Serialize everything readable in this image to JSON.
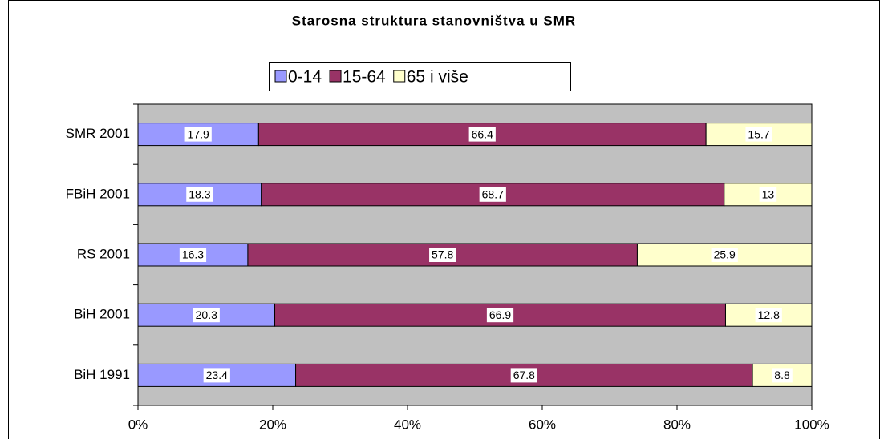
{
  "chart_data": {
    "type": "stacked-barh",
    "title": "Starosna struktura stanovništva u SMR",
    "categories": [
      "SMR 2001",
      "FBiH 2001",
      "RS 2001",
      "BiH 2001",
      "BiH 1991"
    ],
    "series": [
      {
        "name": "0-14",
        "color": "#9999ff",
        "values": [
          17.9,
          18.3,
          16.3,
          20.3,
          23.4
        ]
      },
      {
        "name": "15-64",
        "color": "#993366",
        "values": [
          66.4,
          68.7,
          57.8,
          66.9,
          67.8
        ]
      },
      {
        "name": "65 i više",
        "color": "#ffffcc",
        "values": [
          15.7,
          13,
          25.9,
          12.8,
          8.8
        ]
      }
    ],
    "xlim": [
      0,
      100
    ],
    "xticks": [
      {
        "value": 0,
        "label": "0%"
      },
      {
        "value": 20,
        "label": "20%"
      },
      {
        "value": 40,
        "label": "40%"
      },
      {
        "value": 60,
        "label": "60%"
      },
      {
        "value": 80,
        "label": "80%"
      },
      {
        "value": 100,
        "label": "100%"
      }
    ],
    "plot_background": "#c0c0c0",
    "legend": "top"
  }
}
